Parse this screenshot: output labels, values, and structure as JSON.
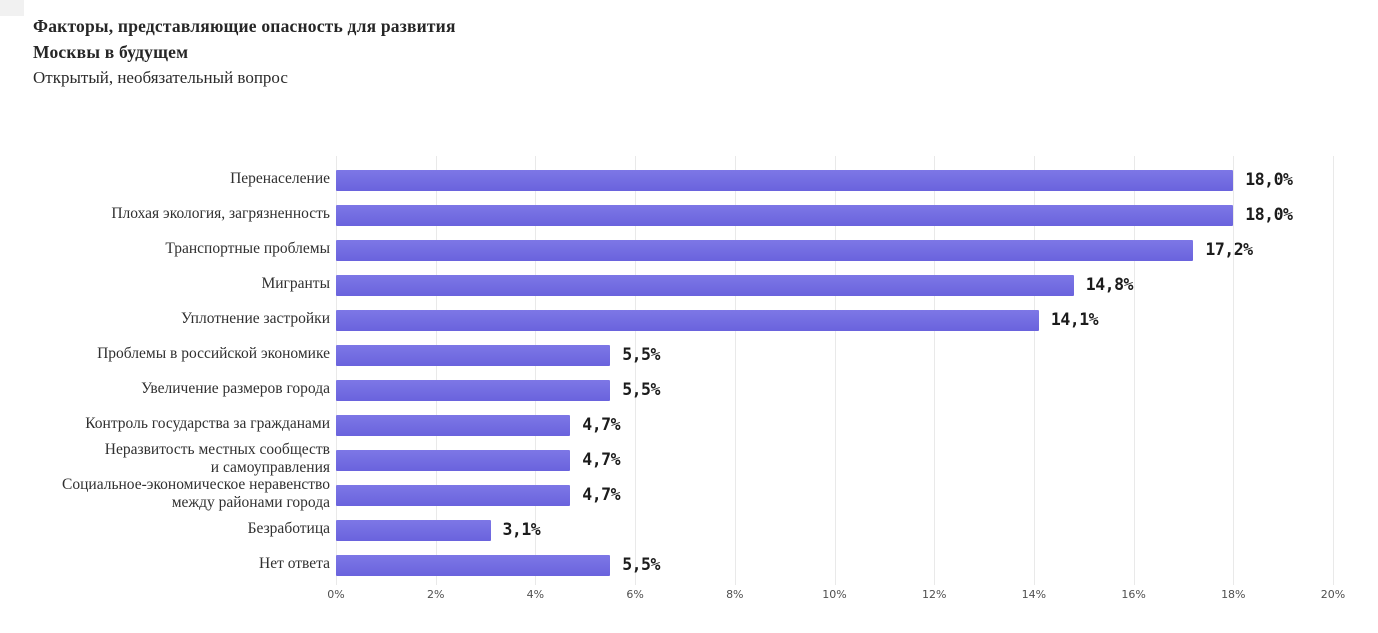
{
  "header": {
    "title_line1": "Факторы, представляющие опасность для развития",
    "title_line2": "Москвы в будущем",
    "subtitle": "Открытый, необязательный вопрос"
  },
  "chart_data": {
    "type": "bar",
    "orientation": "horizontal",
    "title": "Факторы, представляющие опасность для развития Москвы в будущем",
    "subtitle": "Открытый, необязательный вопрос",
    "unit": "%",
    "xlim": [
      0,
      20
    ],
    "x_ticks": [
      "0%",
      "2%",
      "4%",
      "6%",
      "8%",
      "10%",
      "12%",
      "14%",
      "16%",
      "18%",
      "20%"
    ],
    "grid": "vertical",
    "legend": "none",
    "categories": [
      "Перенаселение",
      "Плохая экология, загрязненность",
      "Транспортные проблемы",
      "Мигранты",
      "Уплотнение застройки",
      "Проблемы в российской экономике",
      "Увеличение размеров города",
      "Контроль государства за гражданами",
      "Неразвитость местных сообществ и самоуправления",
      "Социальное-экономическое неравенство между районами города",
      "Безработица",
      "Нет ответа"
    ],
    "category_lines": [
      [
        "Перенаселение"
      ],
      [
        "Плохая экология, загрязненность"
      ],
      [
        "Транспортные проблемы"
      ],
      [
        "Мигранты"
      ],
      [
        "Уплотнение застройки"
      ],
      [
        "Проблемы в российской экономике"
      ],
      [
        "Увеличение размеров города"
      ],
      [
        "Контроль государства за гражданами"
      ],
      [
        "Неразвитость местных сообществ",
        "и самоуправления"
      ],
      [
        "Социальное-экономическое неравенство",
        "между районами города"
      ],
      [
        "Безработица"
      ],
      [
        "Нет ответа"
      ]
    ],
    "values": [
      18.0,
      18.0,
      17.2,
      14.8,
      14.1,
      5.5,
      5.5,
      4.7,
      4.7,
      4.7,
      3.1,
      5.5
    ],
    "value_labels": [
      "18,0%",
      "18,0%",
      "17,2%",
      "14,8%",
      "14,1%",
      "5,5%",
      "5,5%",
      "4,7%",
      "4,7%",
      "4,7%",
      "3,1%",
      "5,5%"
    ]
  },
  "colors": {
    "bar": "#6e67e0",
    "grid": "#e9e9e9",
    "title_text": "#262626",
    "category_text": "#303030",
    "value_text": "#1c1c1c",
    "tick_text": "#4f4f4f",
    "background": "#ffffff"
  }
}
